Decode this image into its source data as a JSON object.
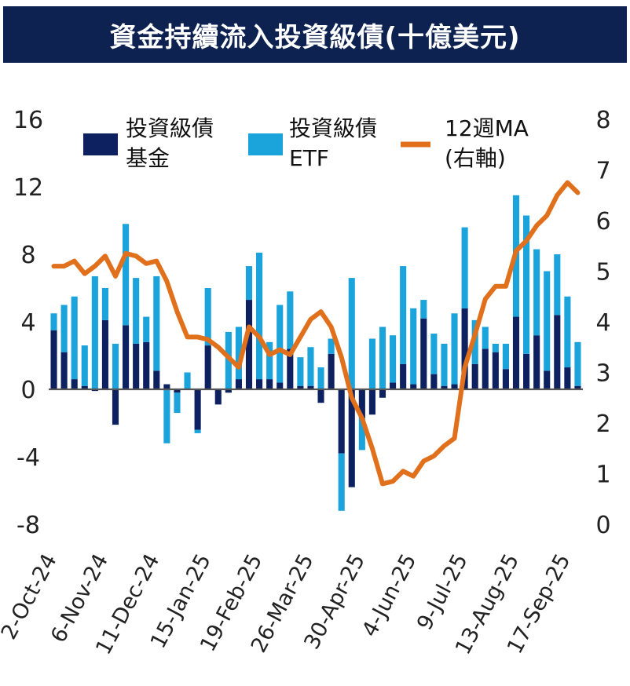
{
  "chart_data": {
    "type": "bar",
    "title": "資金持續流入投資級債(十億美元)",
    "colors": {
      "fund": "#0d2161",
      "etf": "#1ba3dc",
      "ma": "#e0701c",
      "zero": "#555555",
      "header": "#0d2251"
    },
    "legend": [
      {
        "key": "fund",
        "line1": "投資級債",
        "line2": "基金"
      },
      {
        "key": "etf",
        "line1": "投資級債",
        "line2": "ETF"
      },
      {
        "key": "ma",
        "line1": "12週MA",
        "line2": "(右軸)"
      }
    ],
    "y_left": {
      "ticks": [
        "16",
        "12",
        "8",
        "4",
        "0",
        "-4",
        "-8"
      ],
      "ylim": [
        -8,
        16
      ]
    },
    "y_right": {
      "ticks": [
        "8",
        "7",
        "6",
        "5",
        "4",
        "3",
        "2",
        "1",
        "0"
      ],
      "ylim": [
        0,
        8
      ]
    },
    "x_tick_labels": [
      "2-Oct-24",
      "6-Nov-24",
      "11-Dec-24",
      "15-Jan-25",
      "19-Feb-25",
      "26-Mar-25",
      "30-Apr-25",
      "4-Jun-25",
      "9-Jul-25",
      "13-Aug-25",
      "17-Sep-25"
    ],
    "x_tick_positions": [
      0,
      5,
      10,
      15,
      20,
      25,
      30,
      35,
      40,
      45,
      50
    ],
    "series": [
      {
        "name": "投資級債基金",
        "key": "fund",
        "values": [
          3.5,
          2.2,
          0.6,
          0.2,
          -0.1,
          4.1,
          -2.1,
          3.8,
          2.7,
          2.8,
          1.1,
          0.3,
          -0.2,
          0.0,
          -2.4,
          2.6,
          -0.9,
          -0.2,
          0.6,
          5.3,
          0.6,
          0.6,
          0.4,
          2.4,
          0.2,
          0.2,
          -0.8,
          2.1,
          -3.8,
          -5.8,
          -1.7,
          -1.5,
          -0.5,
          0.4,
          1.5,
          0.3,
          4.2,
          0.9,
          0.2,
          0.3,
          4.8,
          1.5,
          2.4,
          2.2,
          1.2,
          4.3,
          2.1,
          3.2,
          1.1,
          4.4,
          1.3,
          0.2
        ],
        "totals": [
          4.5,
          5.0,
          5.5,
          2.6,
          6.6,
          6.0,
          0.6,
          9.8,
          6.6,
          4.3,
          6.7,
          -2.9,
          -1.4,
          1.0,
          -2.6,
          6.0,
          -0.9,
          3.2,
          3.7,
          7.3,
          8.1,
          2.8,
          5.0,
          5.8,
          1.9,
          2.5,
          0.5,
          3.0,
          -7.2,
          0.8,
          -3.6,
          1.5,
          3.2,
          3.2,
          7.3,
          4.8,
          5.3,
          3.3,
          2.7,
          4.5,
          9.6,
          4.1,
          3.7,
          2.7,
          2.7,
          11.5,
          10.3,
          8.3,
          7.0,
          8.0,
          5.5,
          2.8
        ]
      },
      {
        "name": "投資級債ETF",
        "key": "etf"
      },
      {
        "name": "12週MA",
        "key": "ma",
        "axis": "right",
        "values": [
          5.1,
          5.1,
          5.2,
          4.95,
          5.1,
          5.3,
          4.9,
          5.35,
          5.3,
          5.15,
          5.2,
          4.8,
          4.2,
          3.7,
          3.7,
          3.65,
          3.5,
          3.3,
          3.1,
          3.9,
          3.7,
          3.35,
          3.45,
          3.35,
          3.7,
          4.05,
          4.2,
          3.9,
          3.3,
          2.5,
          2.1,
          1.5,
          0.8,
          0.85,
          1.05,
          0.95,
          1.25,
          1.35,
          1.55,
          1.7,
          3.1,
          3.75,
          4.45,
          4.7,
          4.7,
          5.4,
          5.6,
          5.9,
          6.1,
          6.5,
          6.75,
          6.55
        ]
      }
    ]
  }
}
